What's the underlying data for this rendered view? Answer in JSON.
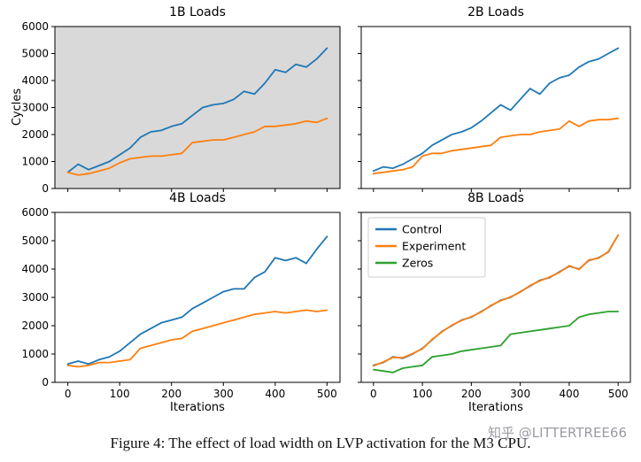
{
  "figure": {
    "caption": "Figure 4: The effect of load width on LVP activation for the M3 CPU.",
    "watermark": "知乎 @LITTERTREE66",
    "ylabel": "Cycles",
    "xlabel": "Iterations"
  },
  "chart_data": [
    {
      "type": "line",
      "title": "1B Loads",
      "bg": "#d9d9d9",
      "show_x_tick_labels": false,
      "show_y_tick_labels": true,
      "legend": false,
      "xlim": [
        -25,
        525
      ],
      "ylim": [
        0,
        6000
      ],
      "xticks": [
        0,
        100,
        200,
        300,
        400,
        500
      ],
      "yticks": [
        0,
        1000,
        2000,
        3000,
        4000,
        5000,
        6000
      ],
      "x": [
        0,
        20,
        40,
        60,
        80,
        100,
        120,
        140,
        160,
        180,
        200,
        220,
        240,
        260,
        280,
        300,
        320,
        340,
        360,
        380,
        400,
        420,
        440,
        460,
        480,
        500
      ],
      "series": [
        {
          "name": "Control",
          "color": "#1f77b4",
          "values": [
            600,
            900,
            700,
            850,
            1000,
            1250,
            1500,
            1900,
            2100,
            2150,
            2300,
            2400,
            2700,
            3000,
            3100,
            3150,
            3300,
            3600,
            3500,
            3900,
            4400,
            4300,
            4600,
            4500,
            4800,
            5200
          ]
        },
        {
          "name": "Experiment",
          "color": "#ff7f0e",
          "values": [
            600,
            500,
            550,
            650,
            750,
            950,
            1100,
            1150,
            1200,
            1200,
            1250,
            1300,
            1700,
            1750,
            1800,
            1800,
            1900,
            2000,
            2100,
            2300,
            2300,
            2350,
            2400,
            2500,
            2450,
            2600
          ]
        }
      ]
    },
    {
      "type": "line",
      "title": "2B Loads",
      "bg": "#ffffff",
      "show_x_tick_labels": false,
      "show_y_tick_labels": false,
      "legend": false,
      "xlim": [
        -25,
        525
      ],
      "ylim": [
        0,
        6000
      ],
      "xticks": [
        0,
        100,
        200,
        300,
        400,
        500
      ],
      "yticks": [
        0,
        1000,
        2000,
        3000,
        4000,
        5000,
        6000
      ],
      "x": [
        0,
        20,
        40,
        60,
        80,
        100,
        120,
        140,
        160,
        180,
        200,
        220,
        240,
        260,
        280,
        300,
        320,
        340,
        360,
        380,
        400,
        420,
        440,
        460,
        480,
        500
      ],
      "series": [
        {
          "name": "Control",
          "color": "#1f77b4",
          "values": [
            650,
            800,
            750,
            900,
            1100,
            1300,
            1600,
            1800,
            2000,
            2100,
            2250,
            2500,
            2800,
            3100,
            2900,
            3300,
            3700,
            3500,
            3900,
            4100,
            4200,
            4500,
            4700,
            4800,
            5000,
            5200
          ]
        },
        {
          "name": "Experiment",
          "color": "#ff7f0e",
          "values": [
            550,
            600,
            650,
            700,
            800,
            1200,
            1300,
            1300,
            1400,
            1450,
            1500,
            1550,
            1600,
            1900,
            1950,
            2000,
            2000,
            2100,
            2150,
            2200,
            2500,
            2300,
            2500,
            2550,
            2550,
            2600
          ]
        }
      ]
    },
    {
      "type": "line",
      "title": "4B Loads",
      "bg": "#ffffff",
      "show_x_tick_labels": true,
      "show_y_tick_labels": true,
      "legend": false,
      "xlim": [
        -25,
        525
      ],
      "ylim": [
        0,
        6000
      ],
      "xticks": [
        0,
        100,
        200,
        300,
        400,
        500
      ],
      "yticks": [
        0,
        1000,
        2000,
        3000,
        4000,
        5000,
        6000
      ],
      "x": [
        0,
        20,
        40,
        60,
        80,
        100,
        120,
        140,
        160,
        180,
        200,
        220,
        240,
        260,
        280,
        300,
        320,
        340,
        360,
        380,
        400,
        420,
        440,
        460,
        480,
        500
      ],
      "series": [
        {
          "name": "Control",
          "color": "#1f77b4",
          "values": [
            650,
            750,
            650,
            800,
            900,
            1100,
            1400,
            1700,
            1900,
            2100,
            2200,
            2300,
            2600,
            2800,
            3000,
            3200,
            3300,
            3300,
            3700,
            3900,
            4400,
            4300,
            4400,
            4200,
            4700,
            5150
          ]
        },
        {
          "name": "Experiment",
          "color": "#ff7f0e",
          "values": [
            600,
            550,
            600,
            700,
            700,
            750,
            800,
            1200,
            1300,
            1400,
            1500,
            1550,
            1800,
            1900,
            2000,
            2100,
            2200,
            2300,
            2400,
            2450,
            2500,
            2450,
            2500,
            2550,
            2500,
            2550
          ]
        }
      ]
    },
    {
      "type": "line",
      "title": "8B Loads",
      "bg": "#ffffff",
      "show_x_tick_labels": true,
      "show_y_tick_labels": false,
      "legend": true,
      "legend_position": "upper left",
      "xlim": [
        -25,
        525
      ],
      "ylim": [
        0,
        6000
      ],
      "xticks": [
        0,
        100,
        200,
        300,
        400,
        500
      ],
      "yticks": [
        0,
        1000,
        2000,
        3000,
        4000,
        5000,
        6000
      ],
      "x": [
        0,
        20,
        40,
        60,
        80,
        100,
        120,
        140,
        160,
        180,
        200,
        220,
        240,
        260,
        280,
        300,
        320,
        340,
        360,
        380,
        400,
        420,
        440,
        460,
        480,
        500
      ],
      "series": [
        {
          "name": "Control",
          "color": "#1f77b4",
          "values": [
            600,
            700,
            900,
            850,
            1000,
            1200,
            1500,
            1800,
            2000,
            2200,
            2300,
            2500,
            2700,
            2900,
            3000,
            3200,
            3400,
            3600,
            3700,
            3900,
            4100,
            4000,
            4300,
            4400,
            4600,
            5200
          ]
        },
        {
          "name": "Experiment",
          "color": "#ff7f0e",
          "values": [
            580,
            720,
            880,
            870,
            1020,
            1180,
            1520,
            1780,
            2020,
            2180,
            2320,
            2480,
            2720,
            2880,
            3020,
            3180,
            3420,
            3580,
            3720,
            3880,
            4120,
            3980,
            4320,
            4380,
            4620,
            5200
          ]
        },
        {
          "name": "Zeros",
          "color": "#2ca02c",
          "values": [
            450,
            400,
            350,
            500,
            550,
            600,
            900,
            950,
            1000,
            1100,
            1150,
            1200,
            1250,
            1300,
            1700,
            1750,
            1800,
            1850,
            1900,
            1950,
            2000,
            2300,
            2400,
            2450,
            2500,
            2500
          ]
        }
      ]
    }
  ]
}
